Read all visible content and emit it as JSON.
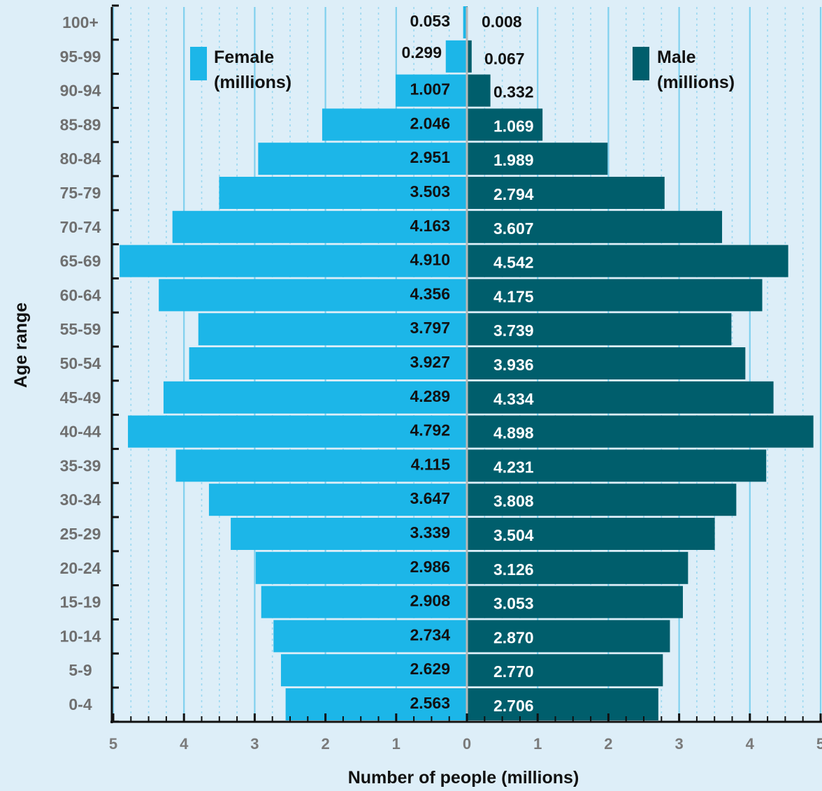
{
  "chart_data": {
    "type": "bar",
    "orientation": "horizontal",
    "layout": "population-pyramid",
    "title": "",
    "xlabel": "Number of people (millions)",
    "ylabel": "Age range",
    "xlim": [
      0,
      5
    ],
    "x_ticks": [
      "5",
      "4",
      "3",
      "2",
      "1",
      "0",
      "1",
      "2",
      "3",
      "4",
      "5"
    ],
    "grid": true,
    "categories": [
      "100+",
      "95-99",
      "90-94",
      "85-89",
      "80-84",
      "75-79",
      "70-74",
      "65-69",
      "60-64",
      "55-59",
      "50-54",
      "45-49",
      "40-44",
      "35-39",
      "30-34",
      "25-29",
      "20-24",
      "15-19",
      "10-14",
      "5-9",
      "0-4"
    ],
    "series": [
      {
        "name": "Female (millions)",
        "legend_lines": [
          "Female",
          "(millions)"
        ],
        "side": "left",
        "color": "#1cb6e8",
        "values": [
          0.053,
          0.299,
          1.007,
          2.046,
          2.951,
          3.503,
          4.163,
          4.91,
          4.356,
          3.797,
          3.927,
          4.289,
          4.792,
          4.115,
          3.647,
          3.339,
          2.986,
          2.908,
          2.734,
          2.629,
          2.563
        ],
        "labels": [
          "0.053",
          "0.299",
          "1.007",
          "2.046",
          "2.951",
          "3.503",
          "4.163",
          "4.910",
          "4.356",
          "3.797",
          "3.927",
          "4.289",
          "4.792",
          "4.115",
          "3.647",
          "3.339",
          "2.986",
          "2.908",
          "2.734",
          "2.629",
          "2.563"
        ]
      },
      {
        "name": "Male (millions)",
        "legend_lines": [
          "Male",
          "(millions)"
        ],
        "side": "right",
        "color": "#005e6c",
        "values": [
          0.008,
          0.067,
          0.332,
          1.069,
          1.989,
          2.794,
          3.607,
          4.542,
          4.175,
          3.739,
          3.936,
          4.334,
          4.898,
          4.231,
          3.808,
          3.504,
          3.126,
          3.053,
          2.87,
          2.77,
          2.706
        ],
        "labels": [
          "0.008",
          "0.067",
          "0.332",
          "1.069",
          "1.989",
          "2.794",
          "3.607",
          "4.542",
          "4.175",
          "3.739",
          "3.936",
          "4.334",
          "4.898",
          "4.231",
          "3.808",
          "3.504",
          "3.126",
          "3.053",
          "2.870",
          "2.770",
          "2.706"
        ]
      }
    ],
    "legend_position": "top-left and top-right",
    "colors": {
      "background": "#ddeef8",
      "grid_major": "#7fd0ee",
      "grid_minor": "#9bd8f0",
      "axis": "#111111",
      "center_line": "#b8b8b8"
    }
  }
}
